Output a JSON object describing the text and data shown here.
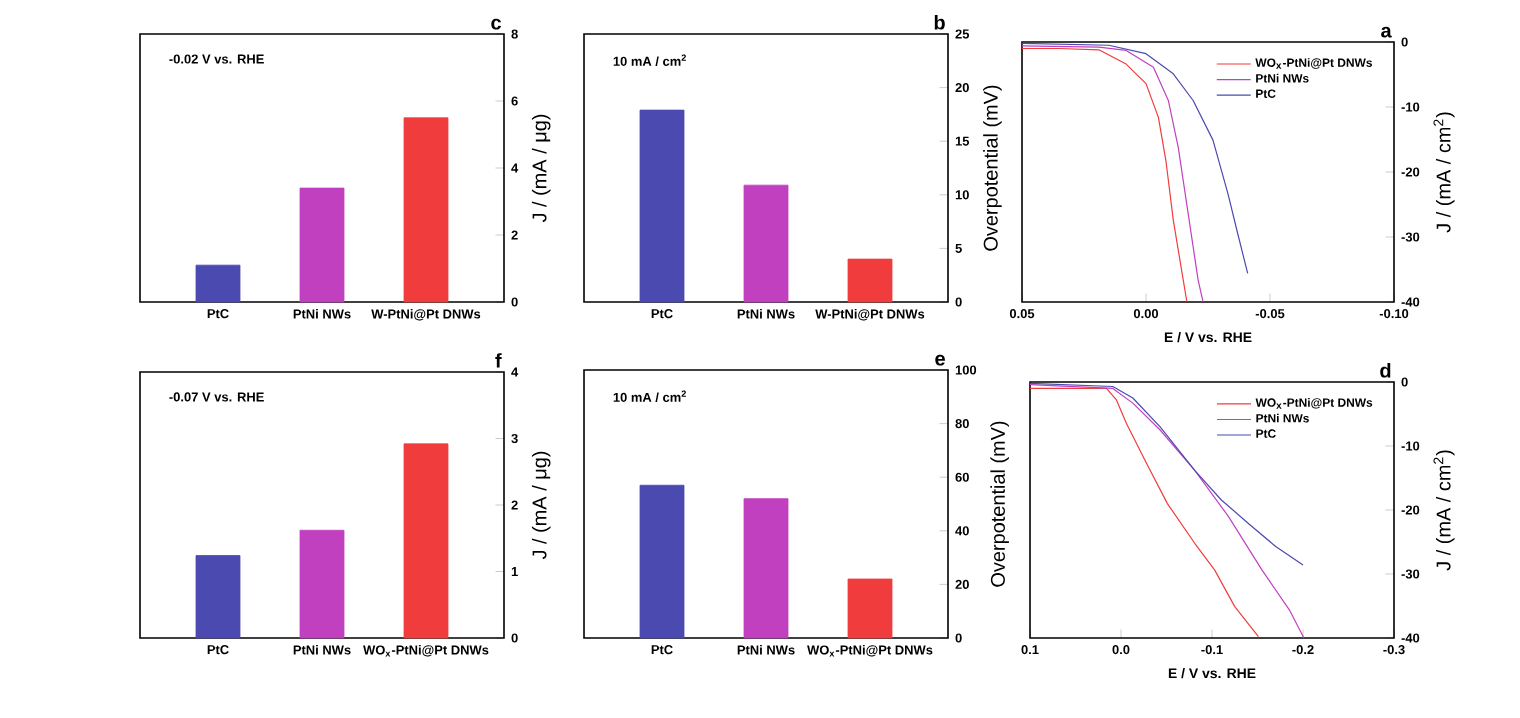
{
  "chart_data": [
    {
      "type": "bar",
      "title": "c",
      "categories": [
        "PtC",
        "PtNi NWs",
        "W-PtNi@Pt DNWs"
      ],
      "values": [
        1.1,
        3.4,
        5.5
      ],
      "colors": [
        "#4a4ab0",
        "#c040c0",
        "#f03c3c"
      ],
      "ylim": [
        0,
        8
      ],
      "yticks": [
        0,
        2,
        4,
        6,
        8
      ],
      "ylabel": "J / (mA / μg)",
      "annotations": [
        "-0.02 V vs. RHE"
      ]
    },
    {
      "type": "bar",
      "title": "b",
      "categories": [
        "PtC",
        "PtNi NWs",
        "W-PtNi@Pt DNWs"
      ],
      "values": [
        17.9,
        10.9,
        4.0
      ],
      "colors": [
        "#4a4ab0",
        "#c040c0",
        "#f03c3c"
      ],
      "ylim": [
        0,
        25
      ],
      "yticks": [
        0,
        5,
        10,
        15,
        20,
        25
      ],
      "ylabel": "Overpotential (mV)",
      "annotations": [
        "10 mA / cm$^{2}$"
      ]
    },
    {
      "type": "line",
      "title": "a",
      "xlabel": "E / V vs. RHE",
      "ylabel": "J / (mA / cm$^{2}$)",
      "xlim": [
        0.05,
        -0.1
      ],
      "xticks": [
        {
          "value": 0.05,
          "label": "0.05"
        },
        {
          "value": 0,
          "label": "0.00"
        },
        {
          "value": -0.05,
          "label": "-0.05"
        },
        {
          "value": -0.1,
          "label": "-0.10"
        }
      ],
      "ylim": [
        -40,
        0
      ],
      "yticks": [
        -40,
        -30,
        -20,
        -10,
        0
      ],
      "legend": "top right",
      "marker": "none",
      "series": [
        {
          "name": "WO$_{x}$-PtNi@Pt DNWs",
          "color": "#f03c3c",
          "x": [
            0.05,
            0.035,
            0.019,
            0.008,
            0.0,
            -0.005,
            -0.008,
            -0.011,
            -0.015,
            -0.0165
          ],
          "values": [
            -1.0,
            -1.0,
            -1.2,
            -3.4,
            -6.4,
            -11.6,
            -18.2,
            -27.4,
            -36.6,
            -40
          ]
        },
        {
          "name": "PtNi NWs",
          "color": "#c040c0",
          "x": [
            0.05,
            0.019,
            0.008,
            -0.003,
            -0.009,
            -0.013,
            -0.017,
            -0.021,
            -0.023
          ],
          "values": [
            -0.6,
            -0.8,
            -1.3,
            -3.9,
            -9,
            -16.2,
            -26.4,
            -36.6,
            -40
          ]
        },
        {
          "name": "PtC",
          "color": "#4a4ab0",
          "x": [
            0.05,
            0.015,
            0.0,
            -0.011,
            -0.019,
            -0.027,
            -0.033,
            -0.037,
            -0.041
          ],
          "values": [
            -0.2,
            -0.5,
            -1.8,
            -4.9,
            -9,
            -15.1,
            -23.3,
            -29.5,
            -35.6
          ]
        }
      ]
    },
    {
      "type": "bar",
      "title": "f",
      "categories": [
        "PtC",
        "PtNi NWs",
        "WO$_{x}$-PtNi@Pt DNWs"
      ],
      "values": [
        1.24,
        1.62,
        2.92
      ],
      "colors": [
        "#4a4ab0",
        "#c040c0",
        "#f03c3c"
      ],
      "ylim": [
        0,
        4
      ],
      "yticks": [
        0,
        1,
        2,
        3,
        4
      ],
      "ylabel": "J / (mA / μg)",
      "annotations": [
        "-0.07 V vs. RHE"
      ]
    },
    {
      "type": "bar",
      "title": "e",
      "categories": [
        "PtC",
        "PtNi NWs",
        "WO$_{x}$-PtNi@Pt DNWs"
      ],
      "values": [
        57,
        52,
        22
      ],
      "colors": [
        "#4a4ab0",
        "#c040c0",
        "#f03c3c"
      ],
      "ylim": [
        0,
        100
      ],
      "yticks": [
        0,
        20,
        40,
        60,
        80,
        100
      ],
      "ylabel": "Overpotential (mV)",
      "annotations": [
        "10 mA / cm$^{2}$"
      ]
    },
    {
      "type": "line",
      "title": "d",
      "xlabel": "E / V vs. RHE",
      "ylabel": "J / (mA / cm$^{2}$)",
      "xlim": [
        0.1,
        -0.3
      ],
      "xticks": [
        {
          "value": 0.1,
          "label": "0.1"
        },
        {
          "value": 0,
          "label": "0.0"
        },
        {
          "value": -0.1,
          "label": "-0.1"
        },
        {
          "value": -0.2,
          "label": "-0.2"
        },
        {
          "value": -0.3,
          "label": "-0.3"
        }
      ],
      "ylim": [
        -40,
        0
      ],
      "yticks": [
        -40,
        -30,
        -20,
        -10,
        0
      ],
      "legend": "top right",
      "marker": "none",
      "series": [
        {
          "name": "WO$_{x}$-PtNi@Pt DNWs",
          "color": "#f03c3c",
          "x": [
            0.1,
            0.016,
            0.005,
            -0.006,
            -0.028,
            -0.051,
            -0.081,
            -0.103,
            -0.125,
            -0.151
          ],
          "values": [
            -1,
            -1,
            -2.8,
            -6.5,
            -12.7,
            -19,
            -25.2,
            -29.4,
            -35.1,
            -39.8
          ]
        },
        {
          "name": "PtNi NWs",
          "color": "#c040c0",
          "x": [
            0.1,
            0.009,
            -0.013,
            -0.043,
            -0.081,
            -0.118,
            -0.155,
            -0.185,
            -0.201
          ],
          "values": [
            -0.4,
            -1,
            -3.3,
            -7.5,
            -13.8,
            -21,
            -29.4,
            -35.6,
            -40
          ]
        },
        {
          "name": "PtC",
          "color": "#4a4ab0",
          "x": [
            0.1,
            0.009,
            -0.013,
            -0.043,
            -0.081,
            -0.11,
            -0.14,
            -0.17,
            -0.2
          ],
          "values": [
            -0.2,
            -0.7,
            -2.5,
            -7,
            -13.8,
            -18.4,
            -22.1,
            -25.7,
            -28.6
          ]
        }
      ]
    }
  ]
}
